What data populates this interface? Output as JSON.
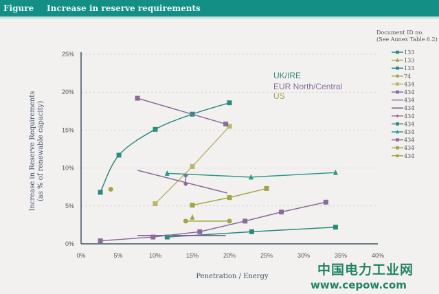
{
  "header": {
    "label": "Figure",
    "title": "Increase in reserve requirements"
  },
  "watermark": {
    "line1": "中国电力工业网",
    "line2": "www.cepow.com"
  },
  "colors": {
    "teal": "#2b8a7e",
    "olive": "#a3a445",
    "purple": "#8a6b9c",
    "dark_purple": "#6c5488",
    "light_olive": "#bdb56a"
  },
  "chart_data": {
    "type": "line",
    "title": "Increase in reserve requirements",
    "xlabel": "Penetration / Energy",
    "ylabel": [
      "Increase in Reserve Requirements",
      "(as % of renewable capacity)"
    ],
    "xlim": [
      0,
      40
    ],
    "ylim": [
      0,
      25
    ],
    "xticks": [
      "0%",
      "5%",
      "10%",
      "15%",
      "20%",
      "25%",
      "30%",
      "35%",
      "40%"
    ],
    "yticks": [
      "0%",
      "5%",
      "10%",
      "15%",
      "20%",
      "25%"
    ],
    "grid": "horizontal dashed",
    "legend_title": [
      "Document ID no.",
      "(See Annex Table 6.2)"
    ],
    "legend_position": "right",
    "annotations": [
      {
        "text": "UK/IRE",
        "color": "#2b8a7e"
      },
      {
        "text": "EUR North/Central",
        "color": "#8a6b9c"
      },
      {
        "text": "US",
        "color": "#a3a445"
      }
    ],
    "series": [
      {
        "name": "133",
        "color": "#2b8a7e",
        "marker": "square",
        "smooth": true,
        "points": [
          [
            2.6,
            6.8
          ],
          [
            5.1,
            11.7
          ],
          [
            10,
            15.1
          ],
          [
            15,
            17.1
          ],
          [
            20,
            18.6
          ]
        ]
      },
      {
        "name": "133",
        "color": "#a3a445",
        "marker": "triangle",
        "points": [
          [
            15,
            3.5
          ]
        ]
      },
      {
        "name": "133",
        "color": "#2b8a7e",
        "marker": "square",
        "points": [
          [
            11.6,
            0.9
          ],
          [
            23,
            1.6
          ],
          [
            34.3,
            2.2
          ]
        ]
      },
      {
        "name": "74",
        "color": "#a3a445",
        "marker": "circle",
        "points": [
          [
            4,
            7.2
          ]
        ]
      },
      {
        "name": "434",
        "color": "#bdb56a",
        "marker": "square",
        "points": [
          [
            10,
            5.3
          ],
          [
            15,
            10.2
          ],
          [
            20,
            15.5
          ]
        ]
      },
      {
        "name": "434",
        "color": "#8a6b9c",
        "marker": "square",
        "points": [
          [
            7.6,
            19.2
          ],
          [
            19.5,
            15.8
          ]
        ]
      },
      {
        "name": "434",
        "color": "#8a6b9c",
        "marker": "none",
        "points": [
          [
            7.6,
            9.7
          ],
          [
            19.7,
            6.7
          ]
        ]
      },
      {
        "name": "434",
        "color": "#6c5488",
        "marker": "none",
        "points": [
          [
            7.6,
            1.1
          ],
          [
            19.5,
            1.1
          ]
        ]
      },
      {
        "name": "434",
        "color": "#8a6b9c",
        "marker": "diamond",
        "points": [
          [
            14.1,
            9.0
          ],
          [
            14.1,
            7.9
          ]
        ]
      },
      {
        "name": "434",
        "color": "#2b8a7e",
        "marker": "square",
        "points": []
      },
      {
        "name": "434",
        "color": "#2b9a8a",
        "marker": "triangle",
        "points": [
          [
            11.6,
            9.3
          ],
          [
            22.9,
            8.8
          ],
          [
            34.3,
            9.4
          ]
        ]
      },
      {
        "name": "434",
        "color": "#8a6b9c",
        "marker": "square",
        "points": [
          [
            2.6,
            0.4
          ],
          [
            9.7,
            0.9
          ],
          [
            16,
            1.6
          ],
          [
            22.1,
            3.0
          ],
          [
            27,
            4.2
          ],
          [
            33,
            5.5
          ]
        ]
      },
      {
        "name": "434",
        "color": "#a3a445",
        "marker": "square",
        "points": [
          [
            15,
            5.1
          ],
          [
            20,
            6.1
          ],
          [
            25,
            7.3
          ]
        ]
      },
      {
        "name": "434",
        "color": "#a3a445",
        "marker": "circle",
        "points": [
          [
            14.1,
            3.0
          ],
          [
            20,
            3.0
          ]
        ]
      }
    ]
  }
}
